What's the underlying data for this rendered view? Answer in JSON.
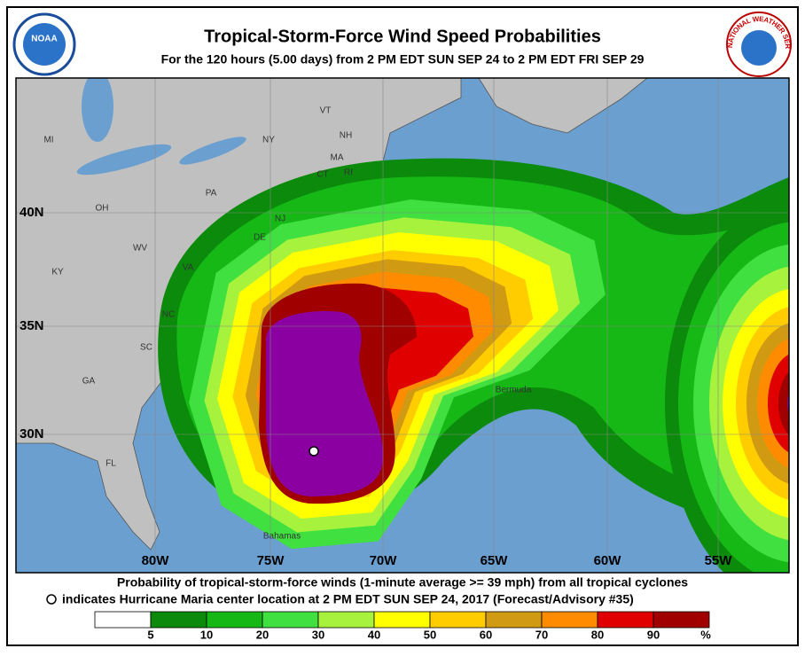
{
  "header": {
    "title": "Tropical-Storm-Force Wind Speed Probabilities",
    "subtitle": "For the 120 hours (5.00 days) from 2 PM EDT SUN SEP 24 to 2 PM EDT FRI SEP 29",
    "noaa": "NOAA",
    "nws": "NATIONAL WEATHER SERVICE"
  },
  "map": {
    "states": [
      "MI",
      "NY",
      "VT",
      "NH",
      "MA",
      "CT",
      "RI",
      "PA",
      "NJ",
      "DE",
      "OH",
      "WV",
      "VA",
      "KY",
      "NC",
      "SC",
      "GA",
      "FL"
    ],
    "places": [
      "Bermuda",
      "Bahamas"
    ],
    "latitudes": [
      "40N",
      "35N",
      "30N"
    ],
    "longitudes": [
      "80W",
      "75W",
      "70W",
      "65W",
      "60W",
      "55W"
    ]
  },
  "caption": [
    "Probability of tropical-storm-force winds (1-minute average >= 39 mph) from all tropical cyclones",
    "indicates Hurricane Maria center location at 2 PM EDT SUN SEP 24, 2017 (Forecast/Advisory #35)"
  ],
  "legend": {
    "ticks": [
      5,
      10,
      20,
      30,
      40,
      50,
      60,
      70,
      80,
      90
    ],
    "unit": "%",
    "colors": [
      "#ffffff",
      "#0b8a0b",
      "#16b816",
      "#3fe03f",
      "#a6f23c",
      "#ffff00",
      "#ffcc00",
      "#d09a12",
      "#ff8c00",
      "#e00000",
      "#a00000",
      "#8b00a0"
    ]
  }
}
